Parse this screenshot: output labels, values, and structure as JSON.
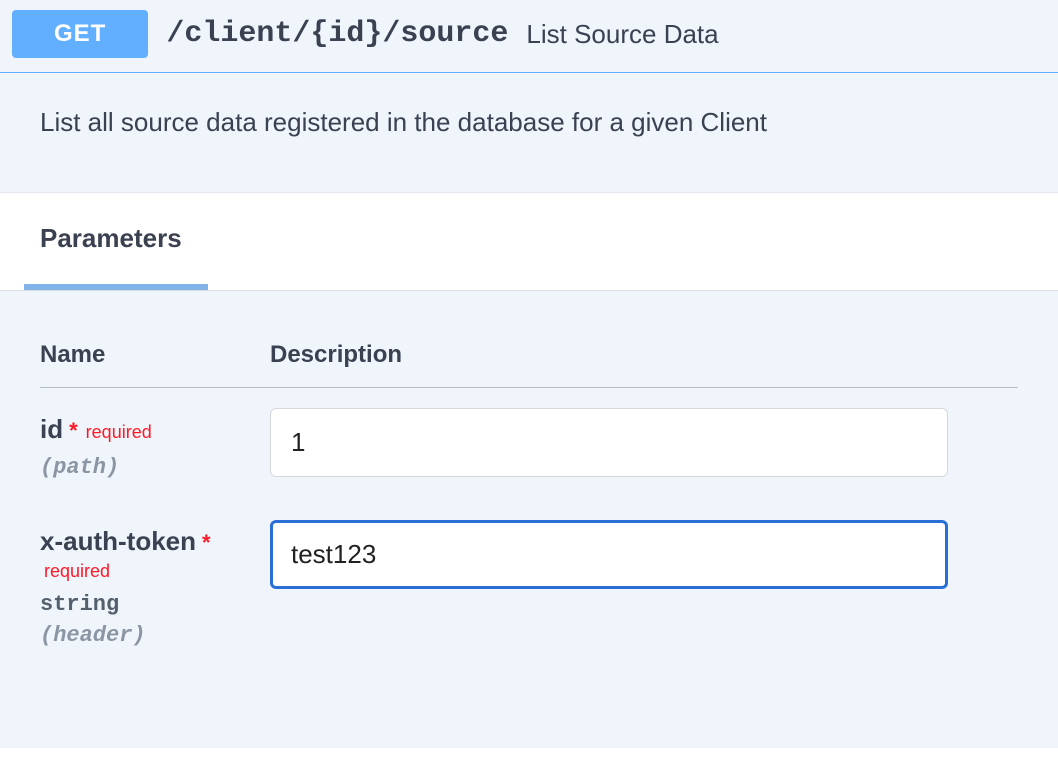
{
  "endpoint": {
    "method": "GET",
    "path": "/client/{id}/source",
    "summary": "List Source Data",
    "description": "List all source data registered in the database for a given Client"
  },
  "sections": {
    "parameters_label": "Parameters"
  },
  "table": {
    "col_name": "Name",
    "col_description": "Description"
  },
  "params": [
    {
      "name": "id",
      "required_star": "*",
      "required_label": "required",
      "type": "",
      "in": "(path)",
      "value": "1",
      "focused": false
    },
    {
      "name": "x-auth-token",
      "required_star": "*",
      "required_label": "required",
      "type": "string",
      "in": "(header)",
      "value": "test123",
      "focused": true
    }
  ],
  "colors": {
    "method_bg": "#61affe",
    "panel_bg": "#eff5fb",
    "required": "#ff1827",
    "focus_border": "#2a6fd6",
    "tab_underline": "#82b3e8"
  }
}
